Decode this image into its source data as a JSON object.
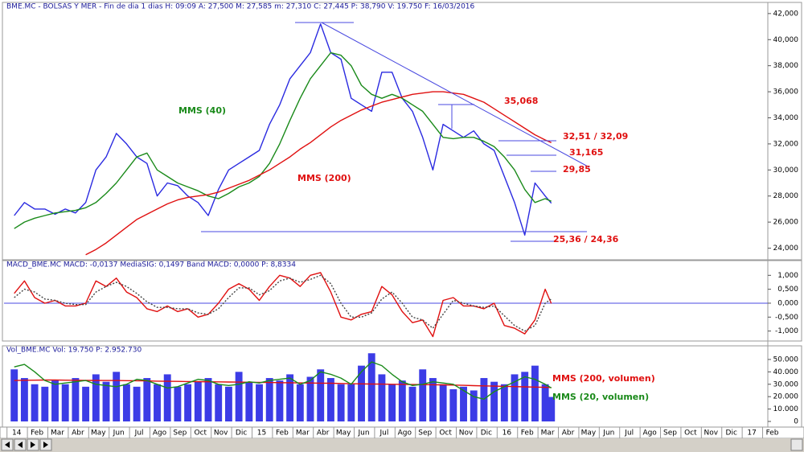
{
  "chart_data": [
    {
      "type": "line",
      "title": "BME.MC - BOLSAS Y MER - Fin de dia 1 dias H: 09:09 A: 27,500 M: 27,585 m: 27,310 C: 27,445 P: 38,790 V: 19.750 F: 16/03/2016",
      "x": [
        0,
        0.5,
        1,
        1.5,
        2,
        2.5,
        3,
        3.5,
        4,
        4.5,
        5,
        5.5,
        6,
        6.5,
        7,
        7.5,
        8,
        8.5,
        9,
        9.5,
        10,
        10.5,
        11,
        11.5,
        12,
        12.5,
        13,
        13.5,
        14,
        14.5,
        15,
        15.5,
        16,
        16.5,
        17,
        17.5,
        18,
        18.5,
        19,
        19.5,
        20,
        20.5,
        21,
        21.5,
        22,
        22.5,
        23,
        23.5,
        24,
        24.5,
        25,
        25.5,
        26,
        26.3
      ],
      "xlim": [
        -0.5,
        36.9
      ],
      "series": [
        {
          "color": "#2a2ae0",
          "values": [
            26.5,
            27.5,
            27.0,
            27.0,
            26.6,
            27.0,
            26.7,
            27.5,
            30.0,
            31.0,
            32.8,
            32.0,
            31.0,
            30.5,
            28.0,
            29.0,
            28.8,
            28.0,
            27.5,
            26.5,
            28.5,
            30.0,
            30.5,
            31.0,
            31.5,
            33.5,
            35.0,
            37.0,
            38.0,
            39.0,
            41.2,
            39.0,
            38.5,
            35.5,
            35.0,
            34.5,
            37.5,
            37.5,
            35.5,
            34.5,
            32.5,
            30.0,
            33.5,
            33.0,
            32.5,
            33.0,
            32.0,
            31.5,
            29.5,
            27.5,
            25.0,
            29.0,
            28.0,
            27.445
          ]
        },
        {
          "name": "MMS (40)",
          "color": "#1a8a1a",
          "values": [
            25.5,
            26.0,
            26.3,
            26.5,
            26.7,
            26.8,
            26.9,
            27.1,
            27.5,
            28.2,
            29.0,
            30.0,
            31.0,
            31.3,
            30.0,
            29.5,
            29.0,
            28.7,
            28.4,
            28.0,
            27.8,
            28.2,
            28.7,
            29.0,
            29.5,
            30.5,
            32.0,
            33.8,
            35.5,
            37.0,
            38.0,
            39.0,
            38.8,
            38.0,
            36.5,
            35.8,
            35.5,
            35.8,
            35.5,
            35.0,
            34.5,
            33.5,
            32.5,
            32.4,
            32.5,
            32.5,
            32.2,
            31.8,
            31.0,
            30.0,
            28.5,
            27.5,
            27.8,
            27.6
          ]
        },
        {
          "name": "MMS (200)",
          "color": "#e01010",
          "values": [
            null,
            null,
            null,
            null,
            null,
            null,
            null,
            23.5,
            23.9,
            24.4,
            25.0,
            25.6,
            26.2,
            26.6,
            27.0,
            27.4,
            27.7,
            27.9,
            28.0,
            28.1,
            28.3,
            28.6,
            28.9,
            29.2,
            29.6,
            30.0,
            30.5,
            31.0,
            31.6,
            32.1,
            32.7,
            33.3,
            33.8,
            34.2,
            34.6,
            34.9,
            35.2,
            35.4,
            35.6,
            35.8,
            35.9,
            36.0,
            36.0,
            35.9,
            35.8,
            35.5,
            35.2,
            34.7,
            34.2,
            33.7,
            33.2,
            32.7,
            32.3,
            32.1
          ]
        }
      ],
      "ylim": [
        23.17,
        42.3
      ],
      "yticks": [
        {
          "value": 24,
          "label": "24,000"
        },
        {
          "value": 26,
          "label": "26,000"
        },
        {
          "value": 28,
          "label": "28,000"
        },
        {
          "value": 30,
          "label": "30,000"
        },
        {
          "value": 32,
          "label": "32,000"
        },
        {
          "value": 34,
          "label": "34,000"
        },
        {
          "value": 36,
          "label": "36,000"
        },
        {
          "value": 38,
          "label": "38,000"
        },
        {
          "value": 40,
          "label": "40,000"
        },
        {
          "value": 42,
          "label": "42,000"
        }
      ],
      "annotations": [
        "35,068",
        "32,51 / 32,09",
        "31,165",
        "29,85",
        "25,36 / 24,36"
      ]
    },
    {
      "type": "line",
      "title": "MACD_BME.MC MACD: -0,0137 MediaSIG: 0,1497 Band MACD: 0,0000 P: 8,8334",
      "x": [
        0,
        0.5,
        1,
        1.5,
        2,
        2.5,
        3,
        3.5,
        4,
        4.5,
        5,
        5.5,
        6,
        6.5,
        7,
        7.5,
        8,
        8.5,
        9,
        9.5,
        10,
        10.5,
        11,
        11.5,
        12,
        12.5,
        13,
        13.5,
        14,
        14.5,
        15,
        15.5,
        16,
        16.5,
        17,
        17.5,
        18,
        18.5,
        19,
        19.5,
        20,
        20.5,
        21,
        21.5,
        22,
        22.5,
        23,
        23.5,
        24,
        24.5,
        25,
        25.5,
        26,
        26.3
      ],
      "xlim": [
        -0.5,
        36.9
      ],
      "series": [
        {
          "color": "#e01010",
          "values": [
            0.35,
            0.8,
            0.2,
            0.0,
            0.1,
            -0.1,
            -0.1,
            0.0,
            0.8,
            0.6,
            0.9,
            0.4,
            0.2,
            -0.2,
            -0.3,
            -0.1,
            -0.3,
            -0.2,
            -0.5,
            -0.4,
            0.0,
            0.5,
            0.7,
            0.5,
            0.1,
            0.6,
            1.0,
            0.9,
            0.6,
            1.0,
            1.1,
            0.4,
            -0.5,
            -0.6,
            -0.4,
            -0.3,
            0.6,
            0.3,
            -0.3,
            -0.7,
            -0.6,
            -1.2,
            0.1,
            0.2,
            -0.1,
            -0.1,
            -0.2,
            0.0,
            -0.8,
            -0.9,
            -1.1,
            -0.6,
            0.5,
            -0.0137
          ]
        },
        {
          "color": "#444444",
          "dash": true,
          "values": [
            0.2,
            0.5,
            0.4,
            0.15,
            0.1,
            0.0,
            -0.05,
            -0.05,
            0.4,
            0.6,
            0.75,
            0.6,
            0.35,
            0.05,
            -0.15,
            -0.15,
            -0.2,
            -0.2,
            -0.35,
            -0.4,
            -0.2,
            0.2,
            0.55,
            0.55,
            0.3,
            0.45,
            0.8,
            0.9,
            0.75,
            0.85,
            1.0,
            0.7,
            0.0,
            -0.5,
            -0.5,
            -0.35,
            0.15,
            0.4,
            0.0,
            -0.5,
            -0.6,
            -0.9,
            -0.4,
            0.1,
            0.0,
            -0.1,
            -0.15,
            -0.1,
            -0.45,
            -0.8,
            -1.0,
            -0.8,
            0.0,
            0.1497
          ]
        }
      ],
      "ylim": [
        -1.3,
        1.5
      ],
      "yticks": [
        {
          "value": -1,
          "label": "-1,000"
        },
        {
          "value": -0.5,
          "label": "-0,500"
        },
        {
          "value": 0,
          "label": "0,000"
        },
        {
          "value": 0.5,
          "label": "0,500"
        },
        {
          "value": 1,
          "label": "1,000"
        }
      ],
      "zero_line_color": "#4a4ae0"
    },
    {
      "type": "bar",
      "title": "Vol_BME.MC Vol: 19.750 P: 2.952.730",
      "x": [
        0,
        0.5,
        1,
        1.5,
        2,
        2.5,
        3,
        3.5,
        4,
        4.5,
        5,
        5.5,
        6,
        6.5,
        7,
        7.5,
        8,
        8.5,
        9,
        9.5,
        10,
        10.5,
        11,
        11.5,
        12,
        12.5,
        13,
        13.5,
        14,
        14.5,
        15,
        15.5,
        16,
        16.5,
        17,
        17.5,
        18,
        18.5,
        19,
        19.5,
        20,
        20.5,
        21,
        21.5,
        22,
        22.5,
        23,
        23.5,
        24,
        24.5,
        25,
        25.5,
        26,
        26.3
      ],
      "xlim": [
        -0.5,
        36.9
      ],
      "values": [
        42000,
        35000,
        30000,
        28000,
        33000,
        30000,
        35000,
        28000,
        38000,
        32000,
        40000,
        30000,
        28000,
        35000,
        30000,
        38000,
        28000,
        30000,
        32000,
        35000,
        30000,
        28000,
        40000,
        32000,
        30000,
        35000,
        33000,
        38000,
        30000,
        36000,
        42000,
        35000,
        30000,
        30000,
        45000,
        55000,
        38000,
        30000,
        33000,
        28000,
        42000,
        35000,
        30000,
        26000,
        28000,
        25000,
        35000,
        32000,
        30000,
        38000,
        40000,
        45000,
        30000,
        19750
      ],
      "color": "#3c3ce6",
      "series": [
        {
          "name": "MMS (200, volumen)",
          "color": "#e01010",
          "values": [
            33000,
            33200,
            33300,
            33400,
            33400,
            33300,
            33200,
            33100,
            33100,
            33000,
            33000,
            32900,
            32800,
            32700,
            32500,
            32400,
            32300,
            32200,
            32100,
            32000,
            31900,
            31800,
            31700,
            31600,
            31500,
            31400,
            31300,
            31200,
            31100,
            31000,
            30900,
            30800,
            30600,
            30400,
            30300,
            30200,
            30100,
            30000,
            29900,
            29800,
            29700,
            29600,
            29500,
            29300,
            29100,
            28900,
            28700,
            28500,
            28300,
            28100,
            27900,
            27700,
            27500,
            27400
          ]
        },
        {
          "name": "MMS (20, volumen)",
          "color": "#1a8a1a",
          "values": [
            44000,
            46000,
            40000,
            33000,
            30000,
            31000,
            32000,
            33000,
            30000,
            29000,
            28000,
            30000,
            34000,
            33000,
            30000,
            27000,
            28000,
            31000,
            34000,
            33000,
            30000,
            29000,
            30000,
            32000,
            31000,
            33000,
            34000,
            35000,
            30000,
            33000,
            40000,
            38000,
            35000,
            30000,
            40000,
            48000,
            45000,
            38000,
            32000,
            29000,
            30000,
            32000,
            31000,
            30000,
            25000,
            20000,
            18000,
            24000,
            28000,
            32000,
            36000,
            34000,
            30000,
            27000
          ]
        }
      ],
      "ylim": [
        -2600,
        55800
      ],
      "yticks": [
        0,
        {
          "value": 10000,
          "label": "10.000"
        },
        {
          "value": 20000,
          "label": "20.000"
        },
        {
          "value": 30000,
          "label": "30.000"
        },
        {
          "value": 40000,
          "label": "40.000"
        },
        {
          "value": 50000,
          "label": "50.000"
        }
      ],
      "xticks": [
        {
          "value": 0,
          "label": "14"
        },
        {
          "value": 1,
          "label": "Feb"
        },
        {
          "value": 2,
          "label": "Mar"
        },
        {
          "value": 3,
          "label": "Abr"
        },
        {
          "value": 4,
          "label": "May"
        },
        {
          "value": 5,
          "label": "Jun"
        },
        {
          "value": 6,
          "label": "Jul"
        },
        {
          "value": 7,
          "label": "Ago"
        },
        {
          "value": 8,
          "label": "Sep"
        },
        {
          "value": 9,
          "label": "Oct"
        },
        {
          "value": 10,
          "label": "Nov"
        },
        {
          "value": 11,
          "label": "Dic"
        },
        {
          "value": 12,
          "label": "15"
        },
        {
          "value": 13,
          "label": "Feb"
        },
        {
          "value": 14,
          "label": "Mar"
        },
        {
          "value": 15,
          "label": "Abr"
        },
        {
          "value": 16,
          "label": "May"
        },
        {
          "value": 17,
          "label": "Jun"
        },
        {
          "value": 18,
          "label": "Jul"
        },
        {
          "value": 19,
          "label": "Ago"
        },
        {
          "value": 20,
          "label": "Sep"
        },
        {
          "value": 21,
          "label": "Oct"
        },
        {
          "value": 22,
          "label": "Nov"
        },
        {
          "value": 23,
          "label": "Dic"
        },
        {
          "value": 24,
          "label": "16"
        },
        {
          "value": 25,
          "label": "Feb"
        },
        {
          "value": 26,
          "label": "Mar"
        },
        {
          "value": 27,
          "label": "Abr"
        },
        {
          "value": 28,
          "label": "May"
        },
        {
          "value": 29,
          "label": "Jun"
        },
        {
          "value": 30,
          "label": "Jul"
        },
        {
          "value": 31,
          "label": "Ago"
        },
        {
          "value": 32,
          "label": "Sep"
        },
        {
          "value": 33,
          "label": "Oct"
        },
        {
          "value": 34,
          "label": "Nov"
        },
        {
          "value": 35,
          "label": "Dic"
        },
        {
          "value": 36,
          "label": "17"
        },
        {
          "value": 37,
          "label": "Feb"
        }
      ]
    }
  ]
}
